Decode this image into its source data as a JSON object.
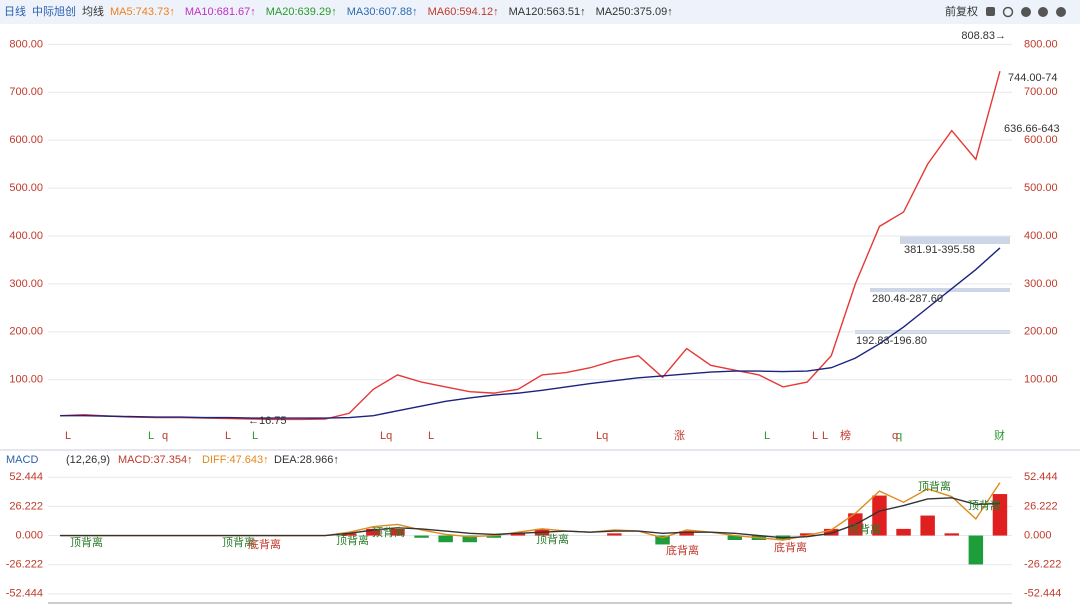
{
  "header": {
    "period": "日线",
    "stock": "中际旭创",
    "ma_label": "均线",
    "mas": [
      {
        "text": "MA5:743.73↑",
        "color": "#f07f1a"
      },
      {
        "text": "MA10:681.67↑",
        "color": "#c02fc0"
      },
      {
        "text": "MA20:639.29↑",
        "color": "#2a9a2a"
      },
      {
        "text": "MA30:607.88↑",
        "color": "#2b6cb0"
      },
      {
        "text": "MA60:594.12↑",
        "color": "#c0392b"
      },
      {
        "text": "MA120:563.51↑",
        "color": "#333333"
      },
      {
        "text": "MA250:375.09↑",
        "color": "#333333"
      }
    ],
    "adjust": "前复权"
  },
  "signals": [
    "L",
    "L",
    "q",
    "L",
    "L",
    "Lq",
    "L",
    "L",
    "Lq",
    "涨",
    "L",
    "L",
    "L",
    "q",
    "榜",
    "q",
    "财"
  ],
  "chart_data": [
    {
      "type": "line",
      "annotations": [
        "808.83→",
        "744.00-74",
        "636.66-643",
        "381.91-395.58",
        "280.48-287.60",
        "192.83-196.80",
        "←16.75"
      ],
      "categories": [
        null,
        null,
        null,
        null,
        null,
        null,
        null,
        null,
        null,
        null,
        null,
        null,
        null,
        null,
        null,
        null,
        null,
        null,
        null,
        null,
        null,
        null,
        null,
        null,
        null,
        null,
        null,
        null,
        null,
        null,
        null,
        null,
        null,
        null,
        null,
        null,
        null,
        null,
        null,
        null
      ],
      "series": [
        {
          "name": "Close",
          "color": "#e53935",
          "values": [
            25,
            27,
            24,
            22,
            21,
            21,
            20,
            19,
            18,
            17,
            17,
            18,
            30,
            80,
            110,
            95,
            85,
            75,
            72,
            80,
            110,
            115,
            125,
            140,
            150,
            105,
            165,
            130,
            120,
            110,
            85,
            95,
            150,
            300,
            420,
            450,
            550,
            620,
            560,
            744
          ]
        },
        {
          "name": "MA250",
          "color": "#1a237e",
          "values": [
            25,
            25,
            24,
            23,
            22,
            22,
            21,
            21,
            20,
            20,
            20,
            20,
            21,
            25,
            35,
            45,
            55,
            62,
            68,
            72,
            78,
            85,
            92,
            98,
            104,
            108,
            112,
            116,
            118,
            118,
            117,
            118,
            125,
            145,
            175,
            210,
            250,
            290,
            330,
            375.09
          ]
        }
      ],
      "ylim": [
        -30,
        830
      ],
      "yticks": [
        {
          "value": 100,
          "label": "100.00"
        },
        {
          "value": 200,
          "label": "200.00"
        },
        {
          "value": 300,
          "label": "300.00"
        },
        {
          "value": 400,
          "label": "400.00"
        },
        {
          "value": 500,
          "label": "500.00"
        },
        {
          "value": 600,
          "label": "600.00"
        },
        {
          "value": 700,
          "label": "700.00"
        },
        {
          "value": 800,
          "label": "800.00"
        }
      ],
      "grid": true
    },
    {
      "type": "macd",
      "title": "MACD",
      "params": "(12,26,9)",
      "legend": [
        "MACD:37.354↑",
        "DIFF:47.643↑",
        "DEA:28.966↑"
      ],
      "annotations": [
        "顶背离",
        "顶背离",
        "底背离",
        "顶背离",
        "顶背离",
        "顶背离",
        "底背离",
        "底背离",
        "顶背离",
        "顶背离",
        "顶背离"
      ],
      "categories": [
        null,
        null,
        null,
        null,
        null,
        null,
        null,
        null,
        null,
        null,
        null,
        null,
        null,
        null,
        null,
        null,
        null,
        null,
        null,
        null,
        null,
        null,
        null,
        null,
        null,
        null,
        null,
        null,
        null,
        null,
        null,
        null,
        null,
        null,
        null,
        null,
        null,
        null,
        null,
        null
      ],
      "up_color": "#e02020",
      "down_color": "#1e9e3a",
      "bars": [
        0,
        0,
        0,
        0,
        0,
        0,
        0,
        0,
        0,
        0,
        0,
        0,
        2,
        6,
        6,
        -2,
        -6,
        -6,
        -2,
        2,
        6,
        0,
        0,
        2,
        0,
        -8,
        4,
        0,
        -4,
        -4,
        -4,
        2,
        6,
        20,
        36,
        6,
        18,
        2,
        -26,
        37.354
      ],
      "series": [
        {
          "name": "DIFF",
          "color": "#e08a1e",
          "values": [
            0,
            0,
            0,
            0,
            0,
            0,
            0,
            0,
            0,
            0,
            0,
            0,
            3,
            8,
            10,
            5,
            1,
            -1,
            0,
            3,
            6,
            4,
            3,
            5,
            4,
            -2,
            5,
            3,
            0,
            -2,
            -4,
            0,
            5,
            20,
            40,
            30,
            42,
            35,
            15,
            47.643
          ]
        },
        {
          "name": "DEA",
          "color": "#333333",
          "values": [
            0,
            0,
            0,
            0,
            0,
            0,
            0,
            0,
            0,
            0,
            0,
            0,
            2,
            5,
            7,
            6,
            4,
            2,
            1,
            2,
            3,
            4,
            3,
            4,
            4,
            2,
            3,
            3,
            2,
            0,
            -2,
            -1,
            2,
            10,
            22,
            27,
            33,
            34,
            28,
            28.966
          ]
        }
      ],
      "ylim": [
        -58,
        59
      ],
      "yticks": [
        {
          "value": -52.444,
          "label": "-52.444"
        },
        {
          "value": -26.222,
          "label": "-26.222"
        },
        {
          "value": 0,
          "label": "0.000"
        },
        {
          "value": 26.222,
          "label": "26.222"
        },
        {
          "value": 52.444,
          "label": "52.444"
        }
      ],
      "grid": true
    }
  ]
}
